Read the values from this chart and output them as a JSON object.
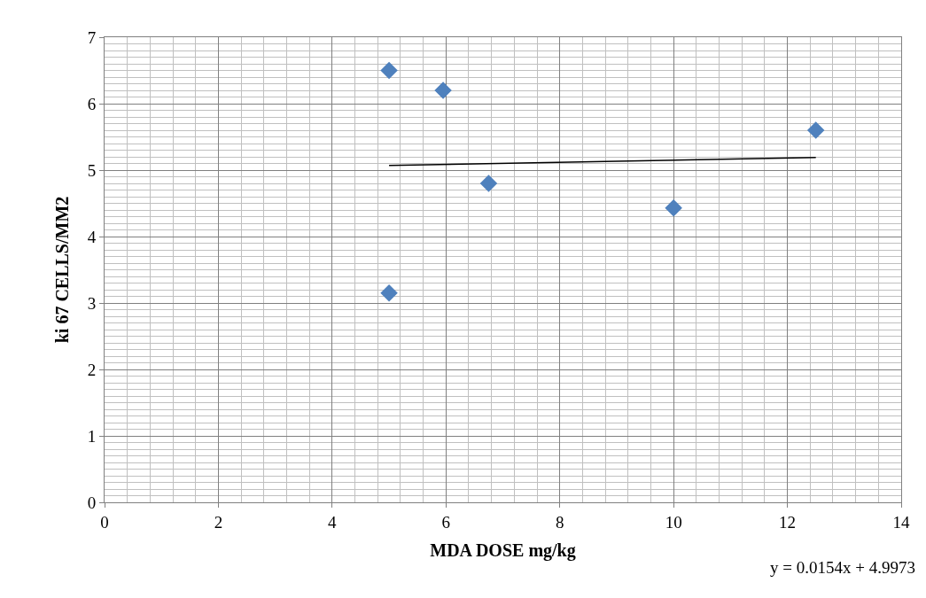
{
  "chart_data": {
    "type": "scatter",
    "xlabel": "MDA DOSE mg/kg",
    "ylabel": "ki 67 CELLS/MM2",
    "x": [
      5,
      5.95,
      6.75,
      5,
      10,
      12.5
    ],
    "series": [
      {
        "color": "#4f81bd",
        "marker": "diamond",
        "values": [
          6.5,
          6.2,
          4.8,
          3.15,
          4.43,
          5.6
        ]
      },
      {
        "type": "line",
        "color": "#000000",
        "marker": "none",
        "x": [
          5,
          12.5
        ],
        "values": [
          5.07,
          5.19
        ]
      }
    ],
    "xlim": [
      0,
      14
    ],
    "xticks": [
      0,
      2,
      4,
      6,
      8,
      10,
      12,
      14
    ],
    "ylim": [
      0,
      7
    ],
    "yticks": [
      0,
      1,
      2,
      3,
      4,
      5,
      6,
      7
    ],
    "grid": true,
    "annotations": [
      "y = 0.0154x + 4.9973"
    ]
  }
}
